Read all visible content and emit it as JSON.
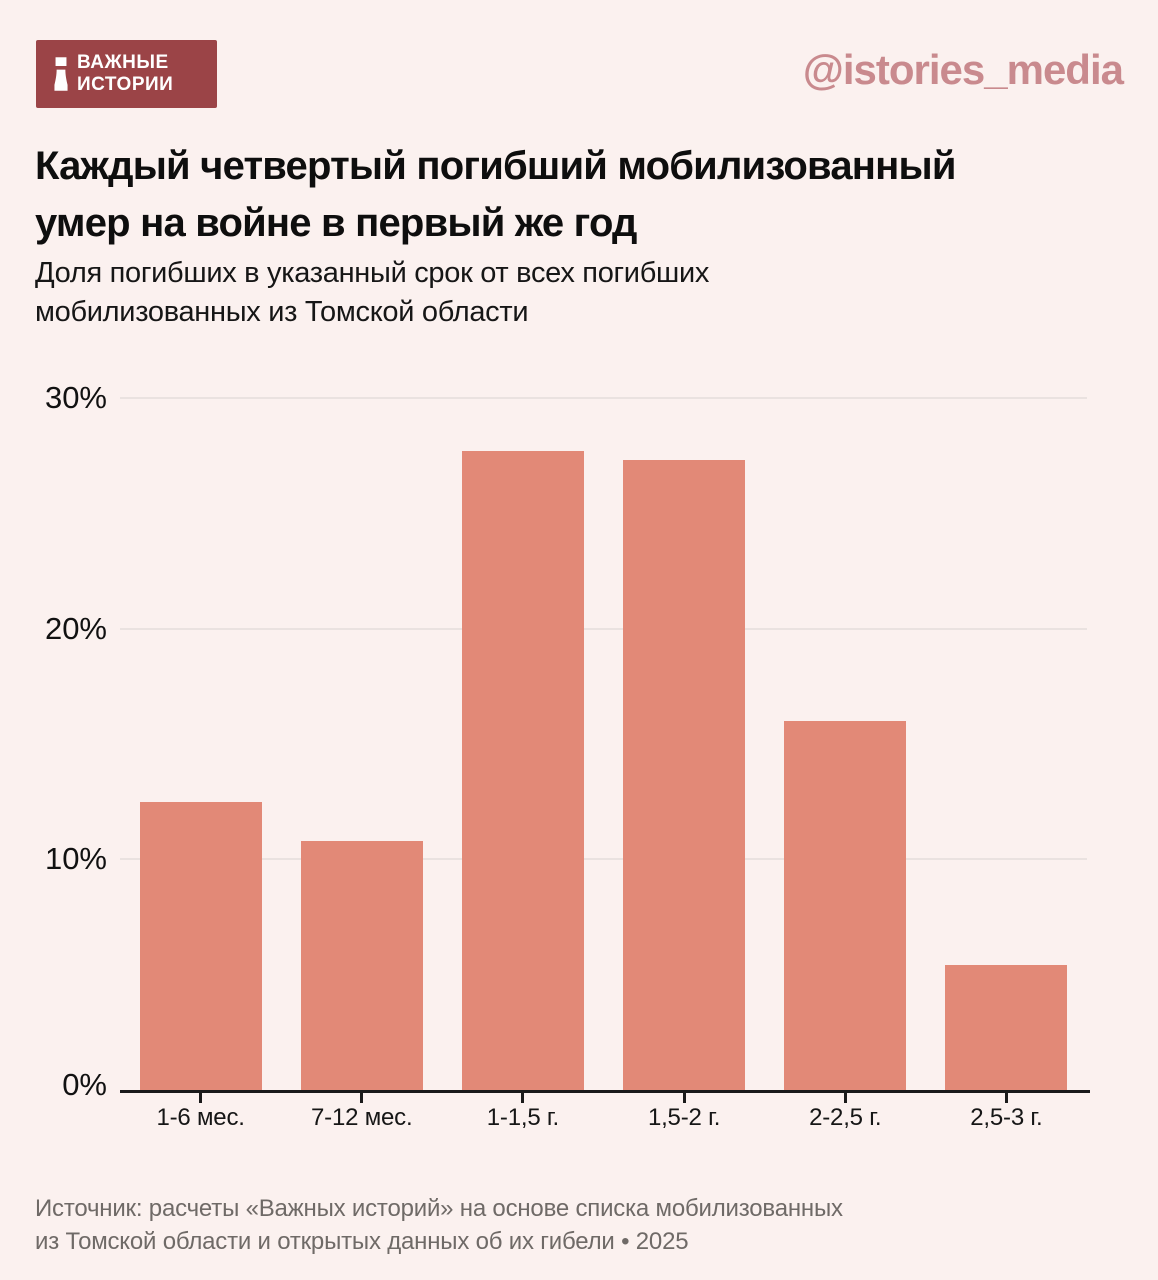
{
  "header": {
    "logo": {
      "line1": "ВАЖНЫЕ",
      "line2": "ИСТОРИИ",
      "bg_color": "#9B4447"
    },
    "handle": "@istories_media",
    "handle_color": "#C98A8E"
  },
  "title_lines": [
    "Каждый четвертый погибший мобилизованный",
    "умер на войне в первый же год"
  ],
  "subtitle_lines": [
    "Доля погибших в указанный срок от всех погибших",
    "мобилизованных из Томской области"
  ],
  "source_lines": [
    "Источник: расчеты «Важных историй» на основе списка мобилизованных",
    "из Томской области и открытых данных об их гибели • 2025"
  ],
  "colors": {
    "background": "#FBF1EF",
    "bar": "#E28977",
    "gridline": "#EAE2E0",
    "axis": "#1A1A1A",
    "source_text": "#6F6A67"
  },
  "chart_data": {
    "type": "bar",
    "title": "Каждый четвертый погибший мобилизованный умер на войне в первый же год",
    "subtitle": "Доля погибших в указанный срок от всех погибших мобилизованных из Томской области",
    "categories": [
      "1-6 мес.",
      "7-12 мес.",
      "1-1,5 г.",
      "1,5-2 г.",
      "2-2,5 г.",
      "2,5-3 г."
    ],
    "values": [
      12.5,
      10.8,
      27.7,
      27.3,
      16,
      5.4
    ],
    "unit": "%",
    "xlabel": "",
    "ylabel": "",
    "ylim": [
      0,
      30
    ],
    "yticks": [
      {
        "label": "30%",
        "value": 30
      },
      {
        "label": "20%",
        "value": 20
      },
      {
        "label": "10%",
        "value": 10
      },
      {
        "label": "0%",
        "value": 0
      }
    ],
    "grid": true,
    "legend": false
  }
}
